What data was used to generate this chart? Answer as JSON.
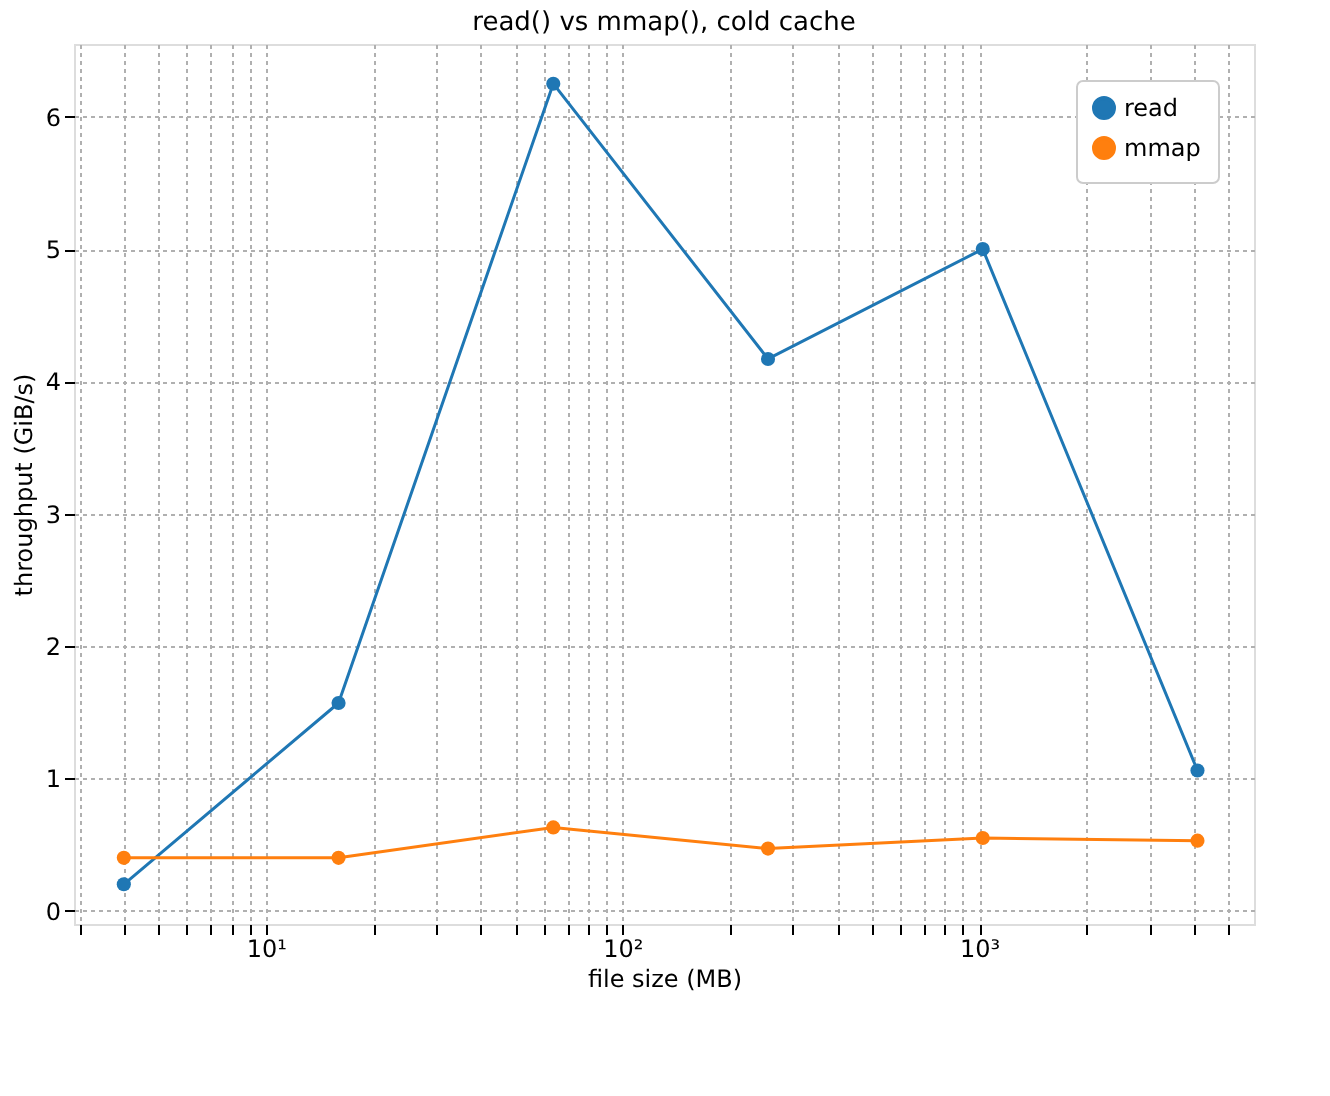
{
  "chart_data": {
    "type": "line",
    "title": "read() vs mmap(), cold cache",
    "xlabel": "file size (MB)",
    "ylabel": "throughput (GiB/s)",
    "x": [
      4,
      16,
      64,
      256,
      1024,
      4096
    ],
    "series": [
      {
        "name": "read",
        "color": "#1f77b4",
        "values": [
          0.2,
          1.57,
          6.25,
          4.17,
          5.0,
          1.06
        ]
      },
      {
        "name": "mmap",
        "color": "#ff7f0e",
        "values": [
          0.4,
          0.4,
          0.63,
          0.47,
          0.55,
          0.53
        ]
      }
    ],
    "log": "x",
    "xlim": [
      2.9,
      5900
    ],
    "ylim": [
      -0.1,
      6.55
    ],
    "xticks": [
      {
        "value": 3,
        "label": null
      },
      {
        "value": 4,
        "label": null
      },
      {
        "value": 5,
        "label": null
      },
      {
        "value": 6,
        "label": null
      },
      {
        "value": 7,
        "label": null
      },
      {
        "value": 8,
        "label": null
      },
      {
        "value": 9,
        "label": null
      },
      {
        "value": 10,
        "label": "10¹"
      },
      {
        "value": 20,
        "label": null
      },
      {
        "value": 30,
        "label": null
      },
      {
        "value": 40,
        "label": null
      },
      {
        "value": 50,
        "label": null
      },
      {
        "value": 60,
        "label": null
      },
      {
        "value": 70,
        "label": null
      },
      {
        "value": 80,
        "label": null
      },
      {
        "value": 90,
        "label": null
      },
      {
        "value": 100,
        "label": "10²"
      },
      {
        "value": 200,
        "label": null
      },
      {
        "value": 300,
        "label": null
      },
      {
        "value": 400,
        "label": null
      },
      {
        "value": 500,
        "label": null
      },
      {
        "value": 600,
        "label": null
      },
      {
        "value": 700,
        "label": null
      },
      {
        "value": 800,
        "label": null
      },
      {
        "value": 900,
        "label": null
      },
      {
        "value": 1000,
        "label": "10³"
      },
      {
        "value": 2000,
        "label": null
      },
      {
        "value": 3000,
        "label": null
      },
      {
        "value": 4000,
        "label": null
      },
      {
        "value": 5000,
        "label": null
      }
    ],
    "yticks": [
      0,
      1,
      2,
      3,
      4,
      5,
      6
    ],
    "grid": true,
    "legend": "top right",
    "marker": "circle",
    "line_style": "solid"
  }
}
